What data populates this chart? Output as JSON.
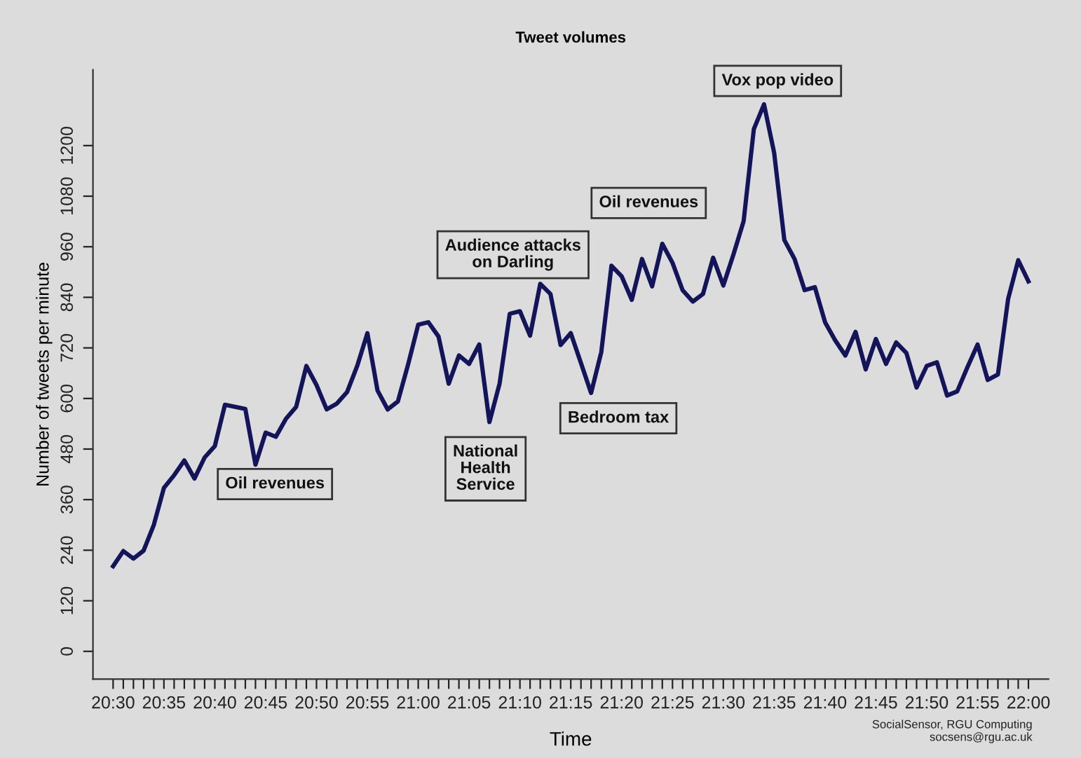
{
  "chart_data": {
    "type": "line",
    "title": "Tweet volumes",
    "xlabel": "Time",
    "ylabel": "Number of tweets per minute",
    "x": [
      20.5,
      20.5167,
      20.5333,
      20.55,
      20.5667,
      20.5833,
      20.6,
      20.6167,
      20.6333,
      20.65,
      20.6667,
      20.6833,
      20.7,
      20.7167,
      20.7333,
      20.75,
      20.7667,
      20.7833,
      20.8,
      20.8167,
      20.8333,
      20.85,
      20.8667,
      20.8833,
      20.9,
      20.9167,
      20.9333,
      20.95,
      20.9667,
      20.9833,
      21,
      21.0167,
      21.0333,
      21.05,
      21.0667,
      21.0833,
      21.1,
      21.1167,
      21.1333,
      21.15,
      21.1667,
      21.1833,
      21.2,
      21.2167,
      21.2333,
      21.25,
      21.2667,
      21.2833,
      21.3,
      21.3167,
      21.3333,
      21.35,
      21.3667,
      21.3833,
      21.4,
      21.4167,
      21.4333,
      21.45,
      21.4667,
      21.4833,
      21.5,
      21.5167,
      21.5333,
      21.55,
      21.5667,
      21.5833,
      21.6,
      21.6167,
      21.6333,
      21.65,
      21.6667,
      21.6833,
      21.7,
      21.7167,
      21.7333,
      21.75,
      21.7667,
      21.7833,
      21.8,
      21.8167,
      21.8333,
      21.85,
      21.8667,
      21.8833,
      21.9,
      21.9167,
      21.9333,
      21.95,
      21.9667,
      21.9833,
      22
    ],
    "series": [
      {
        "color": "#14145a",
        "values": [
          202,
          238,
          220,
          239,
          300,
          388,
          418,
          453,
          410,
          460,
          487,
          585,
          580,
          575,
          443,
          519,
          509,
          552,
          580,
          677,
          632,
          574,
          588,
          615,
          677,
          755,
          619,
          574,
          593,
          680,
          775,
          781,
          747,
          635,
          702,
          682,
          728,
          544,
          635,
          801,
          807,
          749,
          872,
          848,
          727,
          755,
          684,
          613,
          710,
          915,
          890,
          834,
          931,
          866,
          967,
          922,
          857,
          830,
          848,
          934,
          868,
          942,
          1021,
          1239,
          1298,
          1183,
          976,
          931,
          857,
          864,
          781,
          738,
          702,
          758,
          669,
          741,
          682,
          733,
          708,
          626,
          677,
          686,
          607,
          617,
          674,
          728,
          644,
          657,
          836,
          928,
          878
        ]
      }
    ],
    "xlim": [
      20.467,
      22.033
    ],
    "ylim": [
      -66,
      1380
    ],
    "xticks": [
      {
        "value": 20.5,
        "label": "20:30"
      },
      {
        "value": 20.5167,
        "label": null
      },
      {
        "value": 20.5333,
        "label": null
      },
      {
        "value": 20.55,
        "label": null
      },
      {
        "value": 20.5667,
        "label": null
      },
      {
        "value": 20.5833,
        "label": "20:35"
      },
      {
        "value": 20.6,
        "label": null
      },
      {
        "value": 20.6167,
        "label": null
      },
      {
        "value": 20.6333,
        "label": null
      },
      {
        "value": 20.65,
        "label": null
      },
      {
        "value": 20.6667,
        "label": "20:40"
      },
      {
        "value": 20.6833,
        "label": null
      },
      {
        "value": 20.7,
        "label": null
      },
      {
        "value": 20.7167,
        "label": null
      },
      {
        "value": 20.7333,
        "label": null
      },
      {
        "value": 20.75,
        "label": "20:45"
      },
      {
        "value": 20.7667,
        "label": null
      },
      {
        "value": 20.7833,
        "label": null
      },
      {
        "value": 20.8,
        "label": null
      },
      {
        "value": 20.8167,
        "label": null
      },
      {
        "value": 20.8333,
        "label": "20:50"
      },
      {
        "value": 20.85,
        "label": null
      },
      {
        "value": 20.8667,
        "label": null
      },
      {
        "value": 20.8833,
        "label": null
      },
      {
        "value": 20.9,
        "label": null
      },
      {
        "value": 20.9167,
        "label": "20:55"
      },
      {
        "value": 20.9333,
        "label": null
      },
      {
        "value": 20.95,
        "label": null
      },
      {
        "value": 20.9667,
        "label": null
      },
      {
        "value": 20.9833,
        "label": null
      },
      {
        "value": 21,
        "label": "21:00"
      },
      {
        "value": 21.0167,
        "label": null
      },
      {
        "value": 21.0333,
        "label": null
      },
      {
        "value": 21.05,
        "label": null
      },
      {
        "value": 21.0667,
        "label": null
      },
      {
        "value": 21.0833,
        "label": "21:05"
      },
      {
        "value": 21.1,
        "label": null
      },
      {
        "value": 21.1167,
        "label": null
      },
      {
        "value": 21.1333,
        "label": null
      },
      {
        "value": 21.15,
        "label": null
      },
      {
        "value": 21.1667,
        "label": "21:10"
      },
      {
        "value": 21.1833,
        "label": null
      },
      {
        "value": 21.2,
        "label": null
      },
      {
        "value": 21.2167,
        "label": null
      },
      {
        "value": 21.2333,
        "label": null
      },
      {
        "value": 21.25,
        "label": "21:15"
      },
      {
        "value": 21.2667,
        "label": null
      },
      {
        "value": 21.2833,
        "label": null
      },
      {
        "value": 21.3,
        "label": null
      },
      {
        "value": 21.3167,
        "label": null
      },
      {
        "value": 21.3333,
        "label": "21:20"
      },
      {
        "value": 21.35,
        "label": null
      },
      {
        "value": 21.3667,
        "label": null
      },
      {
        "value": 21.3833,
        "label": null
      },
      {
        "value": 21.4,
        "label": null
      },
      {
        "value": 21.4167,
        "label": "21:25"
      },
      {
        "value": 21.4333,
        "label": null
      },
      {
        "value": 21.45,
        "label": null
      },
      {
        "value": 21.4667,
        "label": null
      },
      {
        "value": 21.4833,
        "label": null
      },
      {
        "value": 21.5,
        "label": "21:30"
      },
      {
        "value": 21.5167,
        "label": null
      },
      {
        "value": 21.5333,
        "label": null
      },
      {
        "value": 21.55,
        "label": null
      },
      {
        "value": 21.5667,
        "label": null
      },
      {
        "value": 21.5833,
        "label": "21:35"
      },
      {
        "value": 21.6,
        "label": null
      },
      {
        "value": 21.6167,
        "label": null
      },
      {
        "value": 21.6333,
        "label": null
      },
      {
        "value": 21.65,
        "label": null
      },
      {
        "value": 21.6667,
        "label": "21:40"
      },
      {
        "value": 21.6833,
        "label": null
      },
      {
        "value": 21.7,
        "label": null
      },
      {
        "value": 21.7167,
        "label": null
      },
      {
        "value": 21.7333,
        "label": null
      },
      {
        "value": 21.75,
        "label": "21:45"
      },
      {
        "value": 21.7667,
        "label": null
      },
      {
        "value": 21.7833,
        "label": null
      },
      {
        "value": 21.8,
        "label": null
      },
      {
        "value": 21.8167,
        "label": null
      },
      {
        "value": 21.8333,
        "label": "21:50"
      },
      {
        "value": 21.85,
        "label": null
      },
      {
        "value": 21.8667,
        "label": null
      },
      {
        "value": 21.8833,
        "label": null
      },
      {
        "value": 21.9,
        "label": null
      },
      {
        "value": 21.9167,
        "label": "21:55"
      },
      {
        "value": 21.9333,
        "label": null
      },
      {
        "value": 21.95,
        "label": null
      },
      {
        "value": 21.9667,
        "label": null
      },
      {
        "value": 21.9833,
        "label": null
      },
      {
        "value": 22,
        "label": "22:00"
      }
    ],
    "yticks": [
      0,
      120,
      240,
      360,
      480,
      600,
      720,
      840,
      960,
      1080,
      1200
    ],
    "grid": false,
    "marker": "none",
    "line_style": "solid",
    "annotations": [
      {
        "text": "Oil revenues",
        "x": 20.7333,
        "y": 443
      },
      {
        "text": "National\nHealth\nService",
        "x": 21.1167,
        "y": 544
      },
      {
        "text": "Audience attacks\non Darling",
        "x": 21.2,
        "y": 872
      },
      {
        "text": "Bedroom tax",
        "x": 21.2833,
        "y": 613
      },
      {
        "text": "Oil revenues",
        "x": 21.4,
        "y": 967
      },
      {
        "text": "Vox pop video",
        "x": 21.5667,
        "y": 1298
      },
      "SocialSensor, RGU Computing\nsocsens@rgu.ac.uk"
    ]
  }
}
